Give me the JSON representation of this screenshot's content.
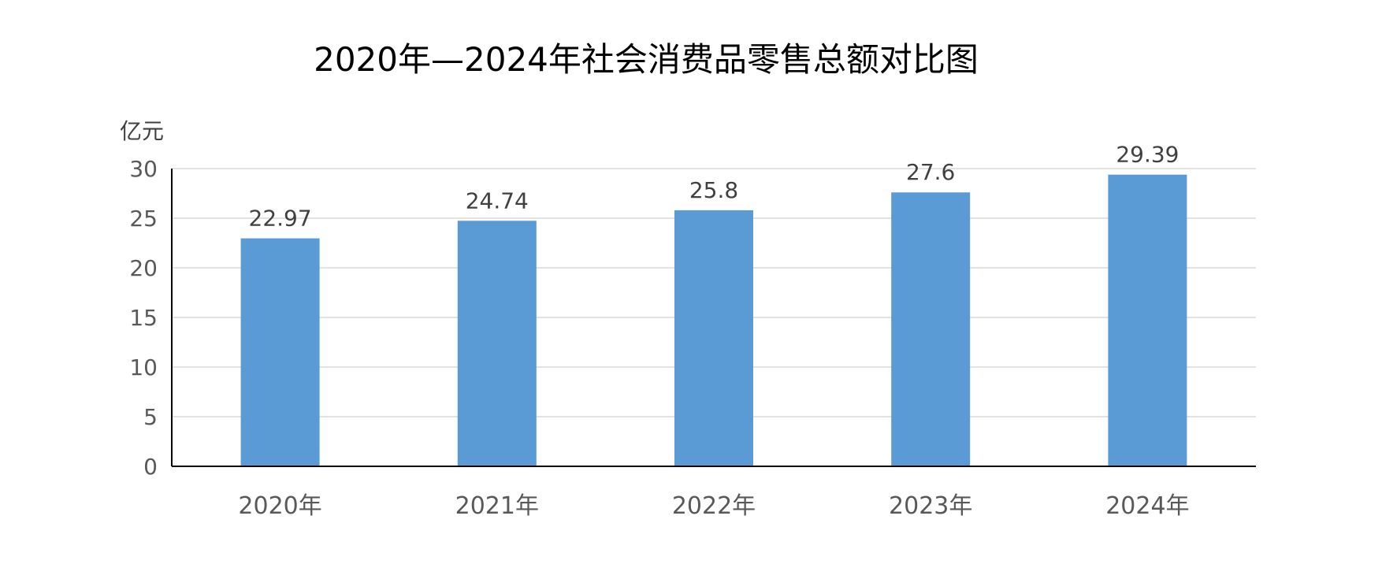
{
  "chart_data": {
    "type": "bar",
    "title": "2020年—2024年社会消费品零售总额对比图",
    "ylabel": "亿元",
    "xlabel": "",
    "categories": [
      "2020年",
      "2021年",
      "2022年",
      "2023年",
      "2024年"
    ],
    "values": [
      22.97,
      24.74,
      25.8,
      27.6,
      29.39
    ],
    "data_labels": [
      "22.97",
      "24.74",
      "25.8",
      "27.6",
      "29.39"
    ],
    "ylim": [
      0,
      30
    ],
    "yticks": [
      "0",
      "5",
      "10",
      "15",
      "20",
      "25",
      "30"
    ],
    "grid": true,
    "legend": "none",
    "bar_color": "#5b9bd5"
  }
}
